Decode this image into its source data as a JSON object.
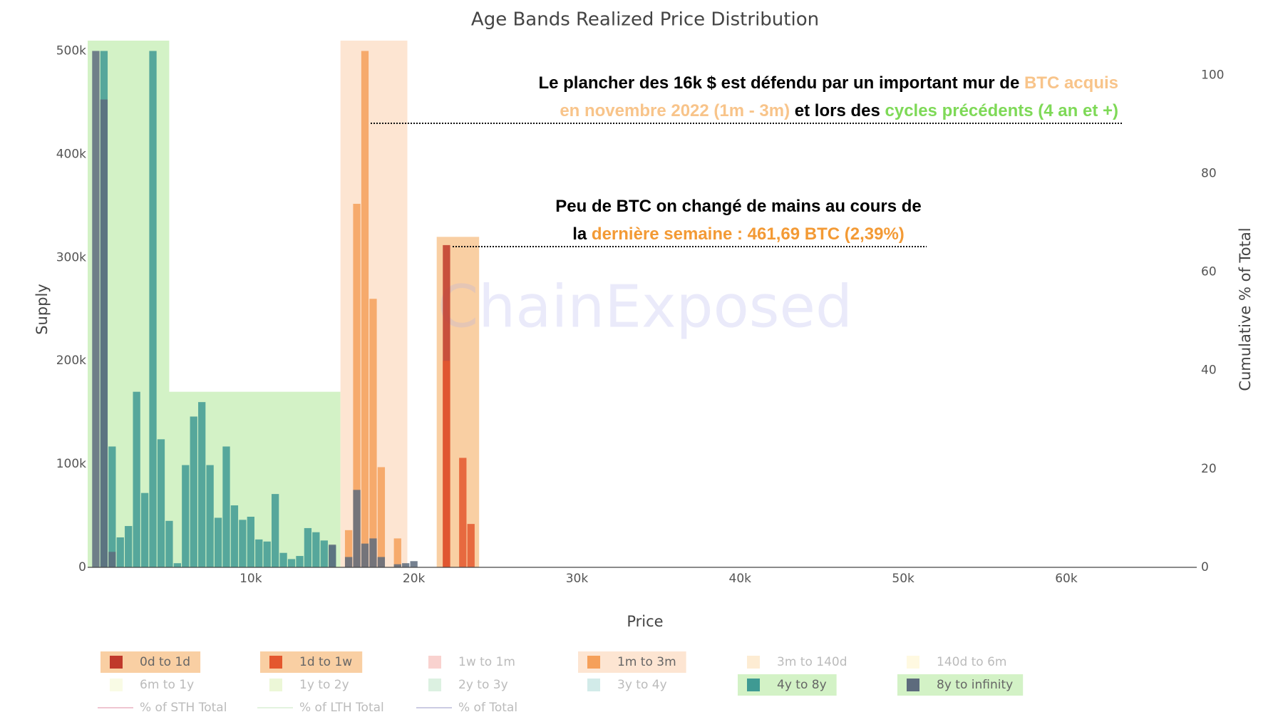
{
  "chart_data": {
    "type": "bar",
    "title": "Age Bands Realized Price Distribution",
    "x_label": "Price",
    "y_label": "Supply",
    "y2_label": "Cumulative % of Total",
    "watermark": "ChainExposed",
    "barmode": "overlay",
    "xlim": [
      0,
      68000
    ],
    "ylim": [
      0,
      510000
    ],
    "y2lim": [
      0,
      107
    ],
    "xticks": [
      {
        "value": 10000,
        "label": "10k"
      },
      {
        "value": 20000,
        "label": "20k"
      },
      {
        "value": 30000,
        "label": "30k"
      },
      {
        "value": 40000,
        "label": "40k"
      },
      {
        "value": 50000,
        "label": "50k"
      },
      {
        "value": 60000,
        "label": "60k"
      }
    ],
    "yticks": [
      0,
      {
        "value": 100000,
        "label": "100k"
      },
      {
        "value": 200000,
        "label": "200k"
      },
      {
        "value": 300000,
        "label": "300k"
      },
      {
        "value": 400000,
        "label": "400k"
      },
      {
        "value": 500000,
        "label": "500k"
      }
    ],
    "y2ticks": [
      0,
      20,
      40,
      60,
      80,
      100
    ],
    "highlights": [
      {
        "x": [
          0,
          5000
        ],
        "y": [
          0,
          510000
        ],
        "color": "#d3f2c6"
      },
      {
        "x": [
          0,
          15500
        ],
        "y": [
          0,
          170000
        ],
        "color": "#d3f2c6"
      },
      {
        "x": [
          15500,
          19600
        ],
        "y": [
          0,
          510000
        ],
        "color": "#fde5d2"
      },
      {
        "x": [
          21400,
          24000
        ],
        "y": [
          0,
          320000
        ],
        "color": "#f9cfa3"
      }
    ],
    "annotations": [
      {
        "lines": [
          [
            {
              "text": "Le plancher des 16k $ est défendu par un important mur de ",
              "color": "#000000"
            },
            {
              "text": "BTC acquis",
              "color": "#f8c48a"
            }
          ],
          [
            {
              "text": "en novembre 2022 (1m - 3m)",
              "color": "#f8c48a"
            },
            {
              "text": " et lors des ",
              "color": "#000000"
            },
            {
              "text": "cycles précédents (4 an et +)",
              "color": "#7ed957"
            }
          ]
        ]
      },
      {
        "lines": [
          [
            {
              "text": "Peu de BTC on changé de mains au cours de",
              "color": "#000000"
            }
          ],
          [
            {
              "text": "la ",
              "color": "#000000"
            },
            {
              "text": "dernière semaine : 461,69 BTC (2,39%)",
              "color": "#f39a35"
            }
          ]
        ]
      }
    ],
    "series": [
      {
        "name": "0d to 1d",
        "color": "#c0392b",
        "visible": true,
        "legend_highlight": "#f9cfa3",
        "x": [
          22000
        ],
        "values": [
          312000
        ]
      },
      {
        "name": "1d to 1w",
        "color": "#e4572e",
        "visible": true,
        "legend_highlight": "#f9cfa3",
        "x": [
          22000,
          23000,
          23500
        ],
        "values": [
          200000,
          106000,
          42000
        ]
      },
      {
        "name": "1w to 1m",
        "color": "#f4a6a0",
        "visible": false
      },
      {
        "name": "1m to 3m",
        "color": "#f5a05a",
        "visible": true,
        "legend_highlight": "#fde5d2",
        "x": [
          16000,
          16500,
          17000,
          17500,
          18000,
          19000
        ],
        "values": [
          36000,
          352000,
          500000,
          260000,
          97000,
          28000
        ]
      },
      {
        "name": "3m to 140d",
        "color": "#fbd9a8",
        "visible": false
      },
      {
        "name": "140d to 6m",
        "color": "#fff3c4",
        "visible": false
      },
      {
        "name": "6m to 1y",
        "color": "#f4f8cc",
        "visible": false
      },
      {
        "name": "1y to 2y",
        "color": "#d9efb0",
        "visible": false
      },
      {
        "name": "2y to 3y",
        "color": "#b9e4c3",
        "visible": false
      },
      {
        "name": "3y to 4y",
        "color": "#a5d8d3",
        "visible": false
      },
      {
        "name": "4y to 8y",
        "color": "#3f9a93",
        "visible": true,
        "legend_highlight": "#d3f2c6",
        "x": [
          1000,
          1500,
          2000,
          2500,
          3000,
          3500,
          4000,
          4500,
          5000,
          5500,
          6000,
          6500,
          7000,
          7500,
          8000,
          8500,
          9000,
          9500,
          10000,
          10500,
          11000,
          11500,
          12000,
          12500,
          13000,
          13500,
          14000,
          14500,
          15000
        ],
        "values": [
          500000,
          117000,
          29000,
          40000,
          170000,
          72000,
          500000,
          124000,
          45000,
          4000,
          99000,
          146000,
          160000,
          99000,
          48000,
          117000,
          60000,
          46000,
          49000,
          27000,
          25000,
          71000,
          14000,
          8000,
          11000,
          38000,
          34000,
          26000,
          21000
        ]
      },
      {
        "name": "8y to infinity",
        "color": "#5d6b7d",
        "visible": true,
        "legend_highlight": "#d3f2c6",
        "x": [
          500,
          1000,
          1500,
          15000,
          16000,
          16500,
          17000,
          17500,
          18000,
          19000,
          19500,
          20000
        ],
        "values": [
          500000,
          453000,
          15000,
          22000,
          10000,
          75000,
          23000,
          28000,
          10000,
          3000,
          4000,
          6000
        ]
      },
      {
        "name": "% of STH Total",
        "type": "line",
        "color": "#e08fa5",
        "visible": false
      },
      {
        "name": "% of LTH Total",
        "type": "line",
        "color": "#c8e8c0",
        "visible": false
      },
      {
        "name": "% of Total",
        "type": "line",
        "color": "#9a9ac8",
        "visible": false
      }
    ]
  }
}
